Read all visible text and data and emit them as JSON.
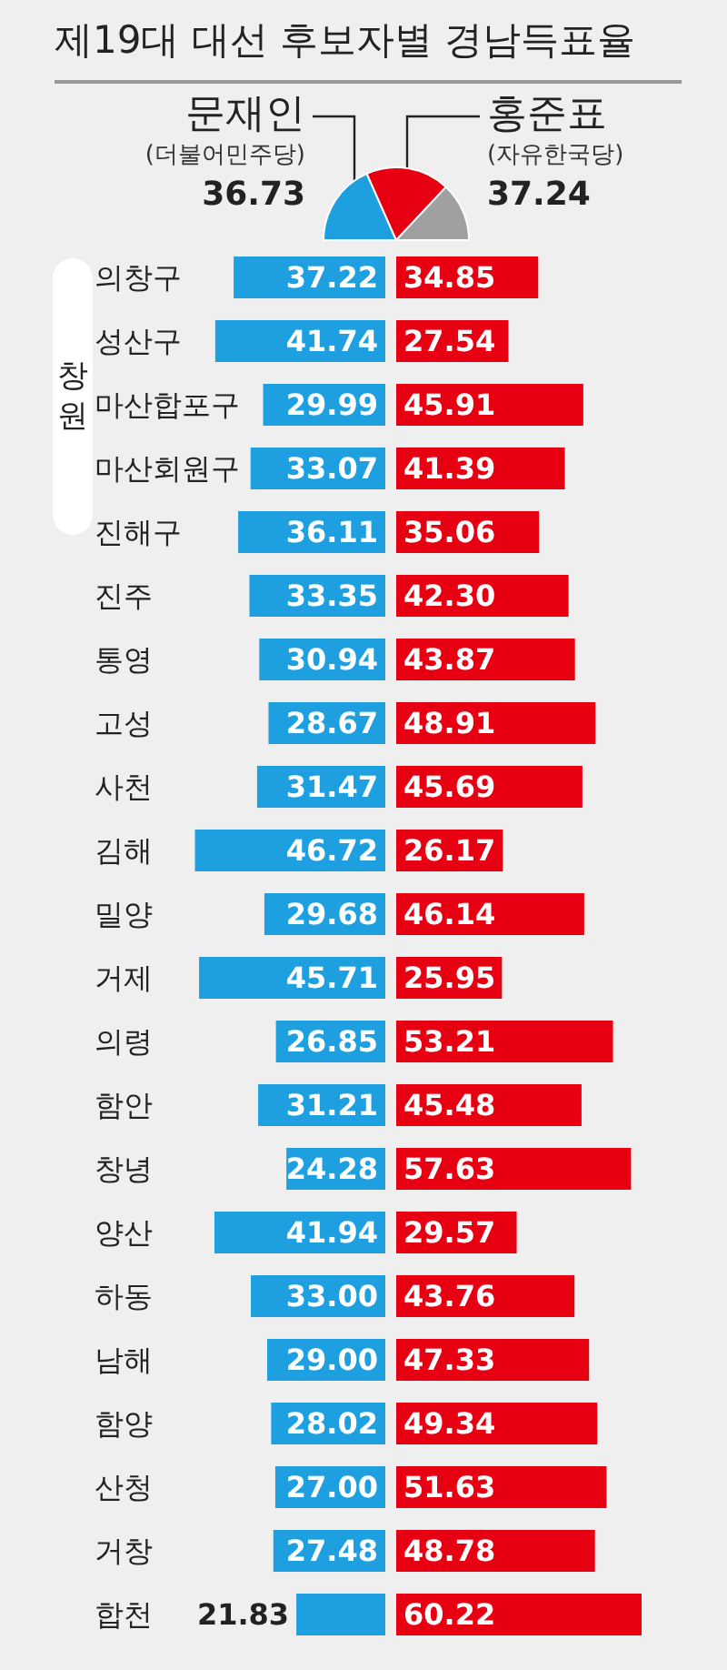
{
  "chart_data": [
    {
      "type": "pie",
      "title": "제19대 대선 후보자별 경남득표율",
      "categories": [
        "문재인\n(더불어민주당)",
        "홍준표\n(자유한국당)",
        null
      ],
      "values": [
        36.73,
        37.24,
        26.03
      ],
      "value_labels": [
        "36.73",
        "37.24",
        null
      ],
      "colors": [
        "#1ea0e0",
        "#e60012",
        "#a0a0a0"
      ]
    },
    {
      "type": "bar",
      "orientation": "horizontal",
      "categories": [
        "의창구",
        "성산구",
        "마산합포구",
        "마산회원구",
        "진해구",
        "진주",
        "통영",
        "고성",
        "사천",
        "김해",
        "밀양",
        "거제",
        "의령",
        "함안",
        "창녕",
        "양산",
        "하동",
        "남해",
        "함양",
        "산청",
        "거창",
        "합천"
      ],
      "annotations": [
        "창원"
      ],
      "color": "#1ea0e0",
      "values": [
        37.22,
        41.74,
        29.99,
        33.07,
        36.11,
        33.35,
        30.94,
        28.67,
        31.47,
        46.72,
        29.68,
        45.71,
        26.85,
        31.21,
        24.28,
        41.94,
        33.0,
        29.0,
        28.02,
        27.0,
        27.48,
        21.83
      ],
      "value_labels": [
        "37.22",
        "41.74",
        "29.99",
        "33.07",
        "36.11",
        "33.35",
        "30.94",
        "28.67",
        "31.47",
        "46.72",
        "29.68",
        "45.71",
        "26.85",
        "31.21",
        "24.28",
        "41.94",
        "33.00",
        "29.00",
        "28.02",
        "27.00",
        "27.48",
        "21.83"
      ]
    },
    {
      "type": "bar",
      "orientation": "horizontal",
      "categories": [
        null,
        null,
        null,
        null,
        null,
        null,
        null,
        null,
        null,
        null,
        null,
        null,
        null,
        null,
        null,
        null,
        null,
        null,
        null,
        null,
        null,
        null
      ],
      "color": "#e60012",
      "values": [
        34.85,
        27.54,
        45.91,
        41.39,
        35.06,
        42.3,
        43.87,
        48.91,
        45.69,
        26.17,
        46.14,
        25.95,
        53.21,
        45.48,
        57.63,
        29.57,
        43.76,
        47.33,
        49.34,
        51.63,
        48.78,
        60.22
      ],
      "value_labels": [
        "34.85",
        "27.54",
        "45.91",
        "41.39",
        "35.06",
        "42.30",
        "43.87",
        "48.91",
        "45.69",
        "26.17",
        "46.14",
        "25.95",
        "53.21",
        "45.48",
        "57.63",
        "29.57",
        "43.76",
        "47.33",
        "49.34",
        "51.63",
        "48.78",
        "60.22"
      ]
    }
  ]
}
